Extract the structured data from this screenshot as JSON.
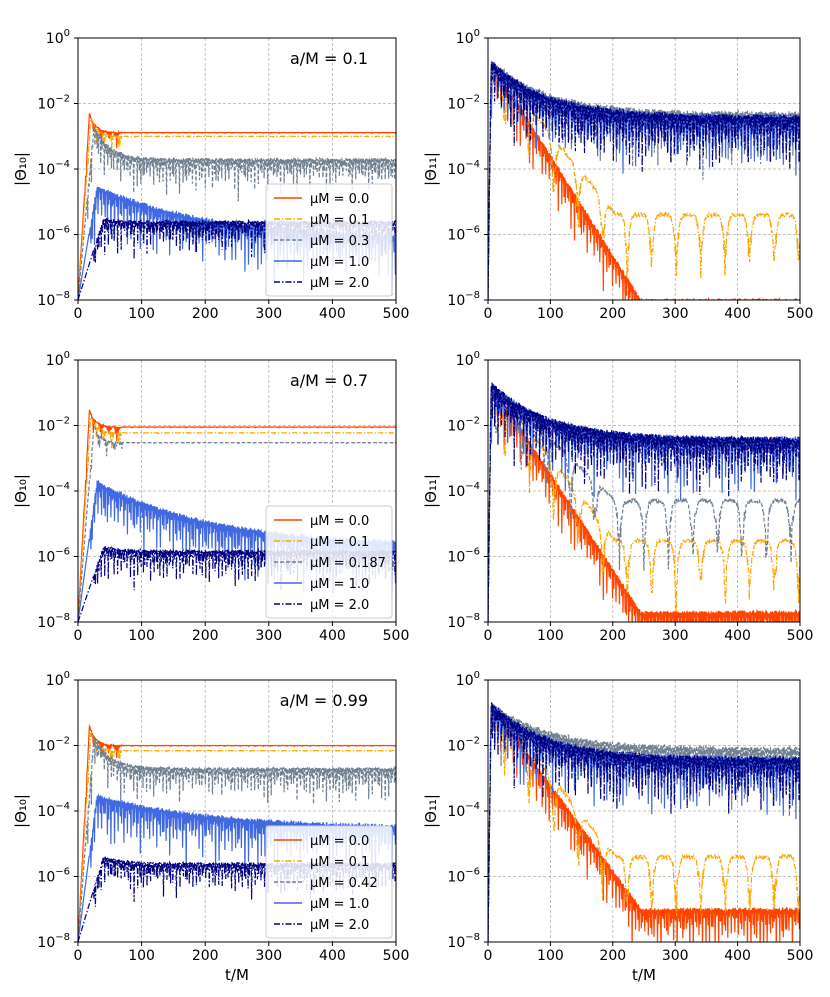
{
  "figure": {
    "xlabel": "t/M",
    "ylabel_left": "|Θ₁₀|",
    "ylabel_right": "|Θ₁₁|",
    "legend_prefix": "μM = "
  },
  "chart_data": [
    {
      "type": "line",
      "title": "",
      "annotation": "a/M = 0.1",
      "xlabel": "",
      "ylabel": "|Θ₁₀|",
      "yscale": "log",
      "xlim": [
        0,
        500
      ],
      "ylim": [
        1e-08,
        1
      ],
      "xticks": [
        "0",
        "100",
        "200",
        "300",
        "400",
        "500"
      ],
      "yticks": [
        "10^-8",
        "10^-6",
        "10^-4",
        "10^-2",
        "10^0"
      ],
      "legend": "lower-right",
      "grid": true,
      "series": [
        {
          "name": "μM = 0.0",
          "color": "#ff4500",
          "dash": "solid",
          "shape": "plateau",
          "peak_t": 18,
          "peak": 0.005,
          "level": 0.0013
        },
        {
          "name": "μM = 0.1",
          "color": "#ffa500",
          "dash": "dashdot",
          "shape": "plateau",
          "peak_t": 20,
          "peak": 0.004,
          "level": 0.001
        },
        {
          "name": "μM = 0.3",
          "color": "#708090",
          "dash": "dashed",
          "shape": "osc_plateau",
          "peak_t": 25,
          "peak": 0.002,
          "level": 0.0002
        },
        {
          "name": "μM = 1.0",
          "color": "#4169e1",
          "dash": "solid",
          "shape": "decay_osc",
          "peak_t": 30,
          "peak": 3e-05,
          "level": 7e-07
        },
        {
          "name": "μM = 2.0",
          "color": "#000080",
          "dash": "dashdot",
          "shape": "low_band",
          "peak_t": 40,
          "peak": 3e-06,
          "level": 2.5e-06
        }
      ]
    },
    {
      "type": "line",
      "title": "",
      "annotation": "",
      "xlabel": "",
      "ylabel": "|Θ₁₁|",
      "yscale": "log",
      "xlim": [
        0,
        500
      ],
      "ylim": [
        1e-08,
        1
      ],
      "xticks": [
        "0",
        "100",
        "200",
        "300",
        "400",
        "500"
      ],
      "yticks": [
        "10^-8",
        "10^-6",
        "10^-4",
        "10^-2",
        "10^0"
      ],
      "legend": "none",
      "grid": true,
      "series": [
        {
          "name": "μM = 0.0",
          "color": "#ff4500",
          "dash": "solid",
          "shape": "fast_decay",
          "peak_t": 5,
          "peak": 0.2,
          "level": 1e-08
        },
        {
          "name": "μM = 0.1",
          "color": "#ffa500",
          "dash": "dashdot",
          "shape": "decay_arcs",
          "peak_t": 5,
          "peak": 0.2,
          "level": 4e-06
        },
        {
          "name": "μM = 0.3",
          "color": "#708090",
          "dash": "dashed",
          "shape": "dense",
          "peak_t": 5,
          "peak": 0.2,
          "level": 0.005
        },
        {
          "name": "μM = 1.0",
          "color": "#4169e1",
          "dash": "solid",
          "shape": "dense",
          "peak_t": 5,
          "peak": 0.2,
          "level": 0.004
        },
        {
          "name": "μM = 2.0",
          "color": "#000080",
          "dash": "dashdot",
          "shape": "dense",
          "peak_t": 5,
          "peak": 0.2,
          "level": 0.004
        }
      ]
    },
    {
      "type": "line",
      "title": "",
      "annotation": "a/M = 0.7",
      "xlabel": "",
      "ylabel": "|Θ₁₀|",
      "yscale": "log",
      "xlim": [
        0,
        500
      ],
      "ylim": [
        1e-08,
        1
      ],
      "xticks": [
        "0",
        "100",
        "200",
        "300",
        "400",
        "500"
      ],
      "yticks": [
        "10^-8",
        "10^-6",
        "10^-4",
        "10^-2",
        "10^0"
      ],
      "legend": "lower-right",
      "grid": true,
      "series": [
        {
          "name": "μM = 0.0",
          "color": "#ff4500",
          "dash": "solid",
          "shape": "plateau",
          "peak_t": 18,
          "peak": 0.03,
          "level": 0.009
        },
        {
          "name": "μM = 0.1",
          "color": "#ffa500",
          "dash": "dashdot",
          "shape": "plateau",
          "peak_t": 20,
          "peak": 0.02,
          "level": 0.006
        },
        {
          "name": "μM = 0.187",
          "color": "#708090",
          "dash": "dashed",
          "shape": "plateau",
          "peak_t": 25,
          "peak": 0.01,
          "level": 0.003
        },
        {
          "name": "μM = 1.0",
          "color": "#4169e1",
          "dash": "solid",
          "shape": "decay_osc",
          "peak_t": 30,
          "peak": 0.0002,
          "level": 2e-06
        },
        {
          "name": "μM = 2.0",
          "color": "#000080",
          "dash": "dashdot",
          "shape": "low_band",
          "peak_t": 40,
          "peak": 2e-06,
          "level": 1.5e-06
        }
      ]
    },
    {
      "type": "line",
      "title": "",
      "annotation": "",
      "xlabel": "",
      "ylabel": "|Θ₁₁|",
      "yscale": "log",
      "xlim": [
        0,
        500
      ],
      "ylim": [
        1e-08,
        1
      ],
      "xticks": [
        "0",
        "100",
        "200",
        "300",
        "400",
        "500"
      ],
      "yticks": [
        "10^-8",
        "10^-6",
        "10^-4",
        "10^-2",
        "10^0"
      ],
      "legend": "none",
      "grid": true,
      "series": [
        {
          "name": "μM = 0.0",
          "color": "#ff4500",
          "dash": "solid",
          "shape": "fast_decay",
          "peak_t": 5,
          "peak": 0.2,
          "level": 2e-08
        },
        {
          "name": "μM = 0.1",
          "color": "#ffa500",
          "dash": "dashdot",
          "shape": "decay_arcs",
          "peak_t": 5,
          "peak": 0.2,
          "level": 3e-06
        },
        {
          "name": "μM = 0.187",
          "color": "#708090",
          "dash": "dashed",
          "shape": "decay_arcs",
          "peak_t": 5,
          "peak": 0.2,
          "level": 5e-05
        },
        {
          "name": "μM = 1.0",
          "color": "#4169e1",
          "dash": "solid",
          "shape": "dense",
          "peak_t": 5,
          "peak": 0.2,
          "level": 0.004
        },
        {
          "name": "μM = 2.0",
          "color": "#000080",
          "dash": "dashdot",
          "shape": "dense",
          "peak_t": 5,
          "peak": 0.2,
          "level": 0.004
        }
      ]
    },
    {
      "type": "line",
      "title": "",
      "annotation": "a/M = 0.99",
      "xlabel": "t/M",
      "ylabel": "|Θ₁₀|",
      "yscale": "log",
      "xlim": [
        0,
        500
      ],
      "ylim": [
        1e-08,
        1
      ],
      "xticks": [
        "0",
        "100",
        "200",
        "300",
        "400",
        "500"
      ],
      "yticks": [
        "10^-8",
        "10^-6",
        "10^-4",
        "10^-2",
        "10^0"
      ],
      "legend": "lower-right",
      "grid": true,
      "series": [
        {
          "name": "μM = 0.0",
          "color": "#ff4500",
          "dash": "solid",
          "shape": "plateau",
          "peak_t": 18,
          "peak": 0.04,
          "level": 0.01
        },
        {
          "name": "μM = 0.1",
          "color": "#ffa500",
          "dash": "dashdot",
          "shape": "plateau",
          "peak_t": 20,
          "peak": 0.03,
          "level": 0.007
        },
        {
          "name": "μM = 0.42",
          "color": "#708090",
          "dash": "dashed",
          "shape": "osc_plateau",
          "peak_t": 25,
          "peak": 0.02,
          "level": 0.002
        },
        {
          "name": "μM = 1.0",
          "color": "#4169e1",
          "dash": "solid",
          "shape": "decay_osc",
          "peak_t": 30,
          "peak": 0.0003,
          "level": 3e-05
        },
        {
          "name": "μM = 2.0",
          "color": "#000080",
          "dash": "dashdot",
          "shape": "low_band",
          "peak_t": 40,
          "peak": 4e-06,
          "level": 2.5e-06
        }
      ]
    },
    {
      "type": "line",
      "title": "",
      "annotation": "",
      "xlabel": "t/M",
      "ylabel": "|Θ₁₁|",
      "yscale": "log",
      "xlim": [
        0,
        500
      ],
      "ylim": [
        1e-08,
        1
      ],
      "xticks": [
        "0",
        "100",
        "200",
        "300",
        "400",
        "500"
      ],
      "yticks": [
        "10^-8",
        "10^-6",
        "10^-4",
        "10^-2",
        "10^0"
      ],
      "legend": "none",
      "grid": true,
      "series": [
        {
          "name": "μM = 0.0",
          "color": "#ff4500",
          "dash": "solid",
          "shape": "fast_decay",
          "peak_t": 5,
          "peak": 0.2,
          "level": 1e-07
        },
        {
          "name": "μM = 0.1",
          "color": "#ffa500",
          "dash": "dashdot",
          "shape": "decay_arcs",
          "peak_t": 5,
          "peak": 0.2,
          "level": 4e-06
        },
        {
          "name": "μM = 0.42",
          "color": "#708090",
          "dash": "dashed",
          "shape": "dense",
          "peak_t": 5,
          "peak": 0.2,
          "level": 0.008
        },
        {
          "name": "μM = 1.0",
          "color": "#4169e1",
          "dash": "solid",
          "shape": "dense",
          "peak_t": 5,
          "peak": 0.2,
          "level": 0.004
        },
        {
          "name": "μM = 2.0",
          "color": "#000080",
          "dash": "dashdot",
          "shape": "dense",
          "peak_t": 5,
          "peak": 0.2,
          "level": 0.004
        }
      ]
    }
  ]
}
